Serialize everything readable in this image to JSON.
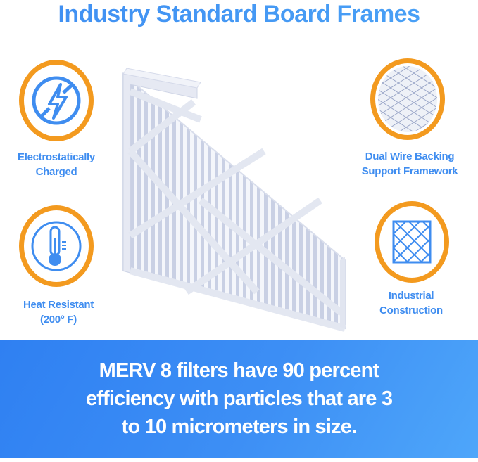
{
  "title": "Industry Standard Board Frames",
  "features": [
    {
      "label_line1": "Electrostatically",
      "label_line2": "Charged",
      "icon": "no-electricity-icon"
    },
    {
      "label_line1": "Heat Resistant",
      "label_line2": "(200° F)",
      "icon": "thermometer-icon"
    },
    {
      "label_line1": "Dual Wire Backing",
      "label_line2": "Support Framework",
      "icon": "wire-mesh-icon"
    },
    {
      "label_line1": "Industrial",
      "label_line2": "Construction",
      "icon": "grid-frame-icon"
    }
  ],
  "banner": {
    "line1": "MERV 8 filters have 90 percent",
    "line2": "efficiency with particles that are 3",
    "line3": "to 10 micrometers in size."
  },
  "colors": {
    "accent_blue": "#3f8df0",
    "ring_orange": "#f39a1f",
    "banner_blue": "#2f80f2"
  }
}
